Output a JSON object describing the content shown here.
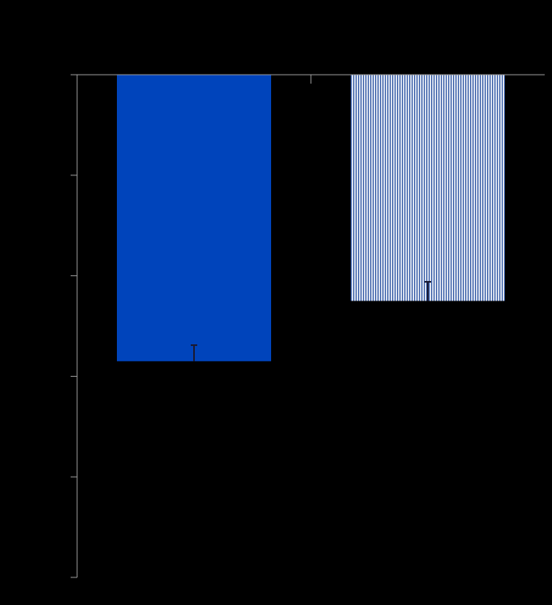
{
  "chart_data": {
    "type": "bar",
    "orientation": "vertical",
    "baseline": "top",
    "categories": [
      "",
      ""
    ],
    "series": [
      {
        "values": [
          2.85,
          2.25
        ],
        "errors": [
          0.16,
          0.19
        ],
        "colors": [
          "#0044BB",
          "#3A5FA8"
        ],
        "fills": [
          "solid",
          "vertical-stripes"
        ]
      }
    ],
    "ylim": [
      0,
      5
    ],
    "yticks": [
      0,
      1,
      2,
      3,
      4,
      5
    ],
    "grid": false,
    "legend": "none",
    "colors": {
      "background": "#000000",
      "axis": "#9A9A9A",
      "error_bar": "#1A1A33"
    }
  }
}
